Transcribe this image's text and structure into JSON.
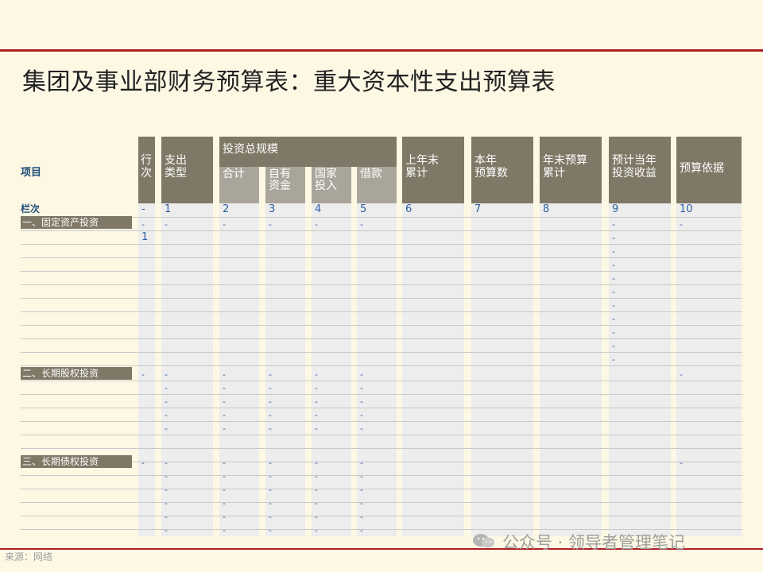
{
  "title": "集团及事业部财务预算表：重大资本性支出预算表",
  "header": {
    "row_label": "项目",
    "columns": [
      {
        "key": "c1",
        "label": "行\n次"
      },
      {
        "key": "c2",
        "label": "支出\n类型"
      },
      {
        "key": "group",
        "label": "投资总规模"
      },
      {
        "key": "c3",
        "label": "合计"
      },
      {
        "key": "c4",
        "label": "自有\n资金"
      },
      {
        "key": "c5",
        "label": "国家\n投入"
      },
      {
        "key": "c6",
        "label": "借款"
      },
      {
        "key": "c7",
        "label": "上年末\n累计"
      },
      {
        "key": "c8",
        "label": "本年\n预算数"
      },
      {
        "key": "c9",
        "label": "年末预算\n累计"
      },
      {
        "key": "c10",
        "label": "预计当年\n投资收益"
      },
      {
        "key": "c11",
        "label": "预算依据"
      }
    ]
  },
  "column_index_row": {
    "label": "栏次",
    "values": [
      "-",
      "1",
      "2",
      "3",
      "4",
      "5",
      "6",
      "7",
      "8",
      "9",
      "10"
    ]
  },
  "sections": [
    {
      "label": "一、固定资产投资"
    },
    {
      "label": "二、长期股权投资"
    },
    {
      "label": "三、长期债权投资"
    }
  ],
  "cell_markers": {
    "dash": "-",
    "row_one": "1"
  },
  "watermark": "公众号 · 领导者管理笔记",
  "source": "来源：网络",
  "colors": {
    "background": "#fdf8e4",
    "accent_red": "#b01e23",
    "header_dark": "#7f7866",
    "header_light": "#aaa59b",
    "column_fill": "#ededed",
    "text_blue": "#2e5fa3"
  }
}
